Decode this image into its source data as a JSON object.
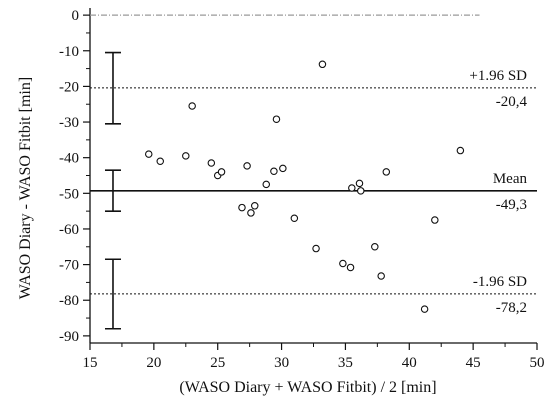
{
  "chart_data": {
    "type": "scatter",
    "title": "",
    "xlabel": "(WASO Diary + WASO Fitbit) / 2 [min]",
    "ylabel": "WASO Diary - WASO Fitbit [min]",
    "xlim": [
      15,
      50
    ],
    "ylim": [
      -92,
      2
    ],
    "x_ticks": [
      15,
      20,
      25,
      30,
      35,
      40,
      45,
      50
    ],
    "y_ticks": [
      0,
      -10,
      -20,
      -30,
      -40,
      -50,
      -60,
      -70,
      -80,
      -90
    ],
    "grid": false,
    "reference_lines": {
      "zero": 0,
      "mean": -49.3,
      "upper_loa": -20.4,
      "lower_loa": -78.2
    },
    "annotations": {
      "upper_label": "+1.96 SD",
      "upper_value": "-20,4",
      "mean_label": "Mean",
      "mean_value": "-49,3",
      "lower_label": "-1.96 SD",
      "lower_value": "-78,2"
    },
    "ci_bars": [
      {
        "x": 16.8,
        "low": -30.5,
        "high": -10.5
      },
      {
        "x": 16.8,
        "low": -55,
        "high": -43.5
      },
      {
        "x": 16.8,
        "low": -88,
        "high": -68.5
      }
    ],
    "points": [
      {
        "x": 19.6,
        "y": -39
      },
      {
        "x": 20.5,
        "y": -41
      },
      {
        "x": 22.5,
        "y": -39.5
      },
      {
        "x": 23.0,
        "y": -25.5
      },
      {
        "x": 24.5,
        "y": -41.5
      },
      {
        "x": 25.0,
        "y": -45
      },
      {
        "x": 25.3,
        "y": -44
      },
      {
        "x": 26.9,
        "y": -54
      },
      {
        "x": 27.3,
        "y": -42.3
      },
      {
        "x": 27.6,
        "y": -55.5
      },
      {
        "x": 27.9,
        "y": -53.5
      },
      {
        "x": 28.8,
        "y": -47.5
      },
      {
        "x": 29.4,
        "y": -43.8
      },
      {
        "x": 29.6,
        "y": -29.2
      },
      {
        "x": 30.1,
        "y": -43
      },
      {
        "x": 31.0,
        "y": -57
      },
      {
        "x": 32.7,
        "y": -65.5
      },
      {
        "x": 33.2,
        "y": -13.8
      },
      {
        "x": 34.8,
        "y": -69.7
      },
      {
        "x": 35.4,
        "y": -70.8
      },
      {
        "x": 35.5,
        "y": -48.5
      },
      {
        "x": 36.1,
        "y": -47.2
      },
      {
        "x": 36.2,
        "y": -49.3
      },
      {
        "x": 37.3,
        "y": -65
      },
      {
        "x": 37.8,
        "y": -73.2
      },
      {
        "x": 38.2,
        "y": -44
      },
      {
        "x": 41.2,
        "y": -82.5
      },
      {
        "x": 42.0,
        "y": -57.5
      },
      {
        "x": 44.0,
        "y": -38
      }
    ]
  }
}
